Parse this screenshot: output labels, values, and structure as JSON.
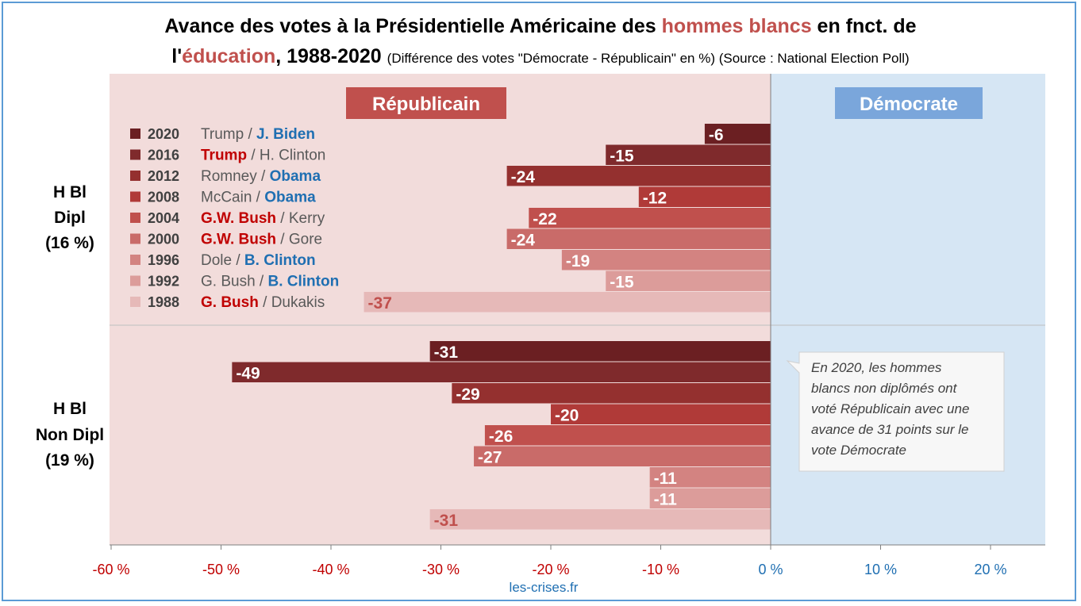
{
  "title": {
    "line1_prefix": "Avance des votes à la Présidentielle Américaine des ",
    "line1_highlight": "hommes blancs",
    "line1_suffix": " en fnct. de",
    "line2_prefix": "l'",
    "line2_highlight": "éducation",
    "line2_suffix": ", 1988-2020 ",
    "subtitle": "(Différence des votes \"Démocrate - Républicain\" en %) (Source : National Election Poll)"
  },
  "labels": {
    "republicain": "Républicain",
    "democrate": "Démocrate",
    "source_site": "les-crises.fr"
  },
  "groups": [
    {
      "line1": "H Bl",
      "line2": "Dipl",
      "line3": "(16 %)"
    },
    {
      "line1": "H Bl",
      "line2": "Non Dipl",
      "line3": "(19 %)"
    }
  ],
  "annotation": {
    "text": "En 2020, les hommes blancs non diplômés ont voté Républicain avec une avance de 31 points sur le vote Démocrate"
  },
  "legend": [
    {
      "year": "2020",
      "rep": "Trump",
      "dem": "J. Biden",
      "winner": "dem"
    },
    {
      "year": "2016",
      "rep": "Trump",
      "dem": "H. Clinton",
      "winner": "rep"
    },
    {
      "year": "2012",
      "rep": "Romney",
      "dem": "Obama",
      "winner": "dem"
    },
    {
      "year": "2008",
      "rep": "McCain",
      "dem": "Obama",
      "winner": "dem"
    },
    {
      "year": "2004",
      "rep": "G.W. Bush",
      "dem": "Kerry",
      "winner": "rep"
    },
    {
      "year": "2000",
      "rep": "G.W. Bush",
      "dem": "Gore",
      "winner": "rep"
    },
    {
      "year": "1996",
      "rep": "Dole",
      "dem": "B. Clinton",
      "winner": "dem"
    },
    {
      "year": "1992",
      "rep": "G. Bush",
      "dem": "B. Clinton",
      "winner": "dem"
    },
    {
      "year": "1988",
      "rep": "G. Bush",
      "dem": "Dukakis",
      "winner": "rep"
    }
  ],
  "colors": {
    "rep_background": "#f2dcdb",
    "dem_background": "#d6e6f4",
    "rep_label_box": "#c0504d",
    "dem_label_box": "#7aa6db",
    "rep_winner_text": "#c00000",
    "dem_winner_text": "#1f6fb2",
    "neutral_text": "#595959",
    "neg_axis": "#c00000",
    "pos_axis": "#1f6fb2",
    "series": [
      "#6b1f22",
      "#7f2a2c",
      "#94302f",
      "#b03a38",
      "#c0504d",
      "#c96b69",
      "#d38381",
      "#dc9c9a",
      "#e6b9b8"
    ]
  },
  "chart_data": {
    "type": "bar",
    "orientation": "horizontal",
    "title": "Avance des votes à la Présidentielle Américaine des hommes blancs en fnct. de l'éducation, 1988-2020",
    "xlabel": "",
    "ylabel": "",
    "xlim": [
      -60,
      25
    ],
    "xticks": [
      -60,
      -50,
      -40,
      -30,
      -20,
      -10,
      0,
      10,
      20
    ],
    "xtick_labels": [
      "-60 %",
      "-50 %",
      "-40 %",
      "-30 %",
      "-20 %",
      "-10 %",
      "0 %",
      "10 %",
      "20 %"
    ],
    "categories": [
      "2020",
      "2016",
      "2012",
      "2008",
      "2004",
      "2000",
      "1996",
      "1992",
      "1988"
    ],
    "series": [
      {
        "name": "H Bl Dipl (16 %)",
        "values": [
          -6,
          -15,
          -24,
          -12,
          -22,
          -24,
          -19,
          -15,
          -37
        ]
      },
      {
        "name": "H Bl Non Dipl (19 %)",
        "values": [
          -31,
          -49,
          -29,
          -20,
          -26,
          -27,
          -11,
          -11,
          -31
        ]
      }
    ],
    "grid": false,
    "legend": "top-left"
  }
}
